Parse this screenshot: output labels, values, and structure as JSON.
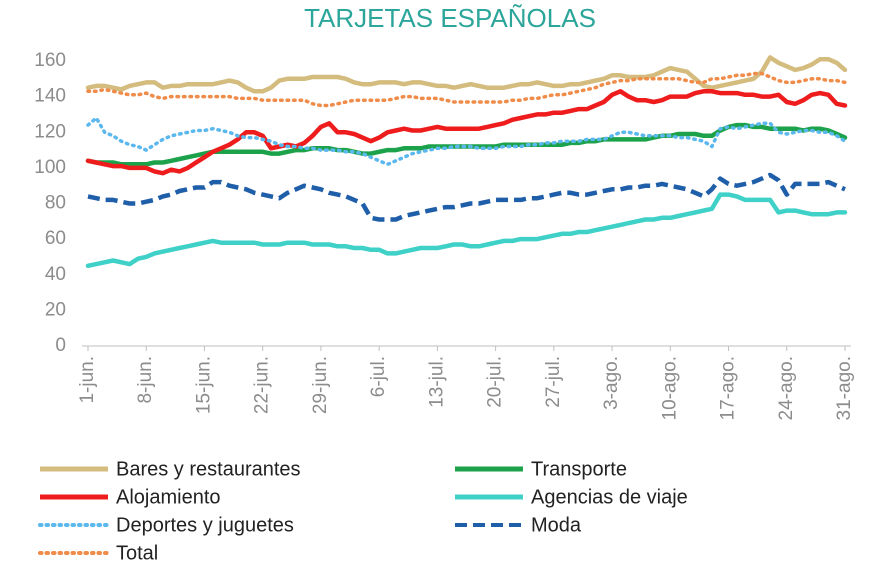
{
  "chart_data": {
    "type": "line",
    "title": "TARJETAS ESPAÑOLAS",
    "categories": [
      "1-jun.",
      null,
      null,
      null,
      null,
      null,
      null,
      "8-jun.",
      null,
      null,
      null,
      null,
      null,
      null,
      "15-jun.",
      null,
      null,
      null,
      null,
      null,
      null,
      "22-jun.",
      null,
      null,
      null,
      null,
      null,
      null,
      "29-jun.",
      null,
      null,
      null,
      null,
      null,
      null,
      "6-jul.",
      null,
      null,
      null,
      null,
      null,
      null,
      "13-jul.",
      null,
      null,
      null,
      null,
      null,
      null,
      "20-jul.",
      null,
      null,
      null,
      null,
      null,
      null,
      "27-jul.",
      null,
      null,
      null,
      null,
      null,
      null,
      "3-ago.",
      null,
      null,
      null,
      null,
      null,
      null,
      "10-ago.",
      null,
      null,
      null,
      null,
      null,
      null,
      "17-ago.",
      null,
      null,
      null,
      null,
      null,
      null,
      "24-ago.",
      null,
      null,
      null,
      null,
      null,
      null,
      "31-ago."
    ],
    "ylim": [
      0,
      160
    ],
    "yticks": [
      0,
      20,
      40,
      60,
      80,
      100,
      120,
      140,
      160
    ],
    "series": [
      {
        "name": "Bares y restaurantes",
        "color": "#d4bc7f",
        "style": "solid",
        "values": [
          145,
          146,
          146,
          145,
          144,
          146,
          147,
          148,
          148,
          145,
          146,
          146,
          147,
          147,
          147,
          147,
          148,
          149,
          148,
          145,
          143,
          143,
          145,
          149,
          150,
          150,
          150,
          151,
          151,
          151,
          151,
          150,
          148,
          147,
          147,
          148,
          148,
          148,
          147,
          148,
          148,
          147,
          146,
          146,
          145,
          146,
          147,
          146,
          145,
          145,
          145,
          146,
          147,
          147,
          148,
          147,
          146,
          146,
          147,
          147,
          148,
          149,
          150,
          152,
          152,
          151,
          151,
          151,
          152,
          154,
          156,
          155,
          154,
          150,
          146,
          145,
          146,
          147,
          148,
          149,
          150,
          154,
          162,
          159,
          157,
          155,
          156,
          158,
          161,
          161,
          159,
          155
        ]
      },
      {
        "name": "Transporte",
        "color": "#1ca24a",
        "style": "solid",
        "values": [
          104,
          103,
          103,
          103,
          102,
          102,
          102,
          102,
          103,
          103,
          104,
          105,
          106,
          107,
          108,
          109,
          109,
          109,
          109,
          109,
          109,
          109,
          108,
          108,
          109,
          110,
          110,
          111,
          111,
          111,
          110,
          110,
          109,
          108,
          108,
          109,
          110,
          110,
          111,
          111,
          111,
          112,
          112,
          112,
          112,
          112,
          112,
          112,
          112,
          112,
          113,
          113,
          113,
          113,
          113,
          113,
          113,
          113,
          114,
          114,
          115,
          115,
          116,
          116,
          116,
          116,
          116,
          116,
          117,
          118,
          118,
          119,
          119,
          119,
          118,
          118,
          121,
          123,
          124,
          124,
          123,
          123,
          122,
          122,
          122,
          122,
          121,
          122,
          122,
          121,
          119,
          117
        ]
      },
      {
        "name": "Alojamiento",
        "color": "#ee1c1c",
        "style": "solid",
        "values": [
          104,
          103,
          102,
          101,
          101,
          100,
          100,
          100,
          98,
          97,
          99,
          98,
          100,
          103,
          106,
          109,
          111,
          113,
          116,
          120,
          120,
          118,
          111,
          112,
          113,
          112,
          114,
          118,
          123,
          125,
          120,
          120,
          119,
          117,
          115,
          117,
          120,
          121,
          122,
          121,
          121,
          122,
          123,
          122,
          122,
          122,
          122,
          122,
          123,
          124,
          125,
          127,
          128,
          129,
          130,
          130,
          131,
          131,
          132,
          133,
          133,
          135,
          137,
          141,
          143,
          140,
          138,
          138,
          137,
          138,
          140,
          140,
          140,
          142,
          143,
          143,
          142,
          142,
          142,
          141,
          141,
          140,
          140,
          141,
          137,
          136,
          138,
          141,
          142,
          141,
          136,
          135
        ]
      },
      {
        "name": "Agencias de viaje",
        "color": "#3fd1c8",
        "style": "solid",
        "values": [
          45,
          46,
          47,
          48,
          47,
          46,
          49,
          50,
          52,
          53,
          54,
          55,
          56,
          57,
          58,
          59,
          58,
          58,
          58,
          58,
          58,
          57,
          57,
          57,
          58,
          58,
          58,
          57,
          57,
          57,
          56,
          56,
          55,
          55,
          54,
          54,
          52,
          52,
          53,
          54,
          55,
          55,
          55,
          56,
          57,
          57,
          56,
          56,
          57,
          58,
          59,
          59,
          60,
          60,
          60,
          61,
          62,
          63,
          63,
          64,
          64,
          65,
          66,
          67,
          68,
          69,
          70,
          71,
          71,
          72,
          72,
          73,
          74,
          75,
          76,
          77,
          85,
          85,
          84,
          82,
          82,
          82,
          82,
          75,
          76,
          76,
          75,
          74,
          74,
          74,
          75,
          75
        ]
      },
      {
        "name": "Deportes y juguetes",
        "color": "#5bb8ee",
        "style": "dotted",
        "values": [
          124,
          128,
          120,
          118,
          115,
          113,
          112,
          110,
          113,
          116,
          118,
          119,
          120,
          121,
          121,
          122,
          121,
          120,
          118,
          117,
          117,
          116,
          115,
          113,
          112,
          112,
          111,
          111,
          110,
          110,
          110,
          109,
          109,
          108,
          106,
          104,
          102,
          104,
          106,
          108,
          109,
          110,
          111,
          111,
          112,
          112,
          112,
          111,
          111,
          111,
          112,
          112,
          112,
          113,
          113,
          114,
          114,
          115,
          115,
          115,
          116,
          116,
          116,
          118,
          120,
          120,
          119,
          118,
          118,
          118,
          118,
          117,
          117,
          116,
          115,
          112,
          122,
          123,
          122,
          123,
          124,
          125,
          125,
          120,
          119,
          120,
          121,
          121,
          120,
          120,
          118,
          115
        ]
      },
      {
        "name": "Moda",
        "color": "#1f5ea8",
        "style": "dashed",
        "values": [
          84,
          83,
          82,
          82,
          81,
          80,
          80,
          81,
          82,
          84,
          85,
          87,
          88,
          89,
          89,
          92,
          92,
          90,
          89,
          88,
          86,
          85,
          84,
          83,
          86,
          88,
          90,
          89,
          88,
          86,
          85,
          84,
          82,
          80,
          72,
          71,
          71,
          71,
          73,
          74,
          75,
          76,
          77,
          78,
          78,
          79,
          80,
          80,
          81,
          82,
          82,
          82,
          82,
          83,
          83,
          84,
          85,
          86,
          86,
          85,
          85,
          86,
          87,
          88,
          88,
          89,
          89,
          90,
          90,
          91,
          90,
          89,
          88,
          86,
          84,
          88,
          94,
          91,
          90,
          91,
          92,
          94,
          96,
          93,
          85,
          91,
          91,
          91,
          91,
          92,
          90,
          88
        ]
      },
      {
        "name": "Total",
        "color": "#ef8c4a",
        "style": "dotted",
        "values": [
          143,
          143,
          144,
          143,
          142,
          141,
          141,
          142,
          140,
          139,
          140,
          140,
          140,
          140,
          140,
          140,
          140,
          140,
          139,
          139,
          139,
          138,
          138,
          138,
          138,
          138,
          138,
          136,
          135,
          135,
          136,
          137,
          138,
          138,
          138,
          138,
          138,
          139,
          140,
          140,
          139,
          139,
          139,
          138,
          137,
          137,
          137,
          137,
          137,
          137,
          137,
          138,
          138,
          139,
          139,
          140,
          141,
          141,
          142,
          143,
          144,
          145,
          147,
          148,
          149,
          149,
          150,
          150,
          150,
          150,
          150,
          150,
          149,
          148,
          148,
          150,
          150,
          151,
          152,
          152,
          153,
          153,
          151,
          149,
          148,
          148,
          149,
          150,
          150,
          149,
          149,
          148
        ]
      }
    ]
  }
}
